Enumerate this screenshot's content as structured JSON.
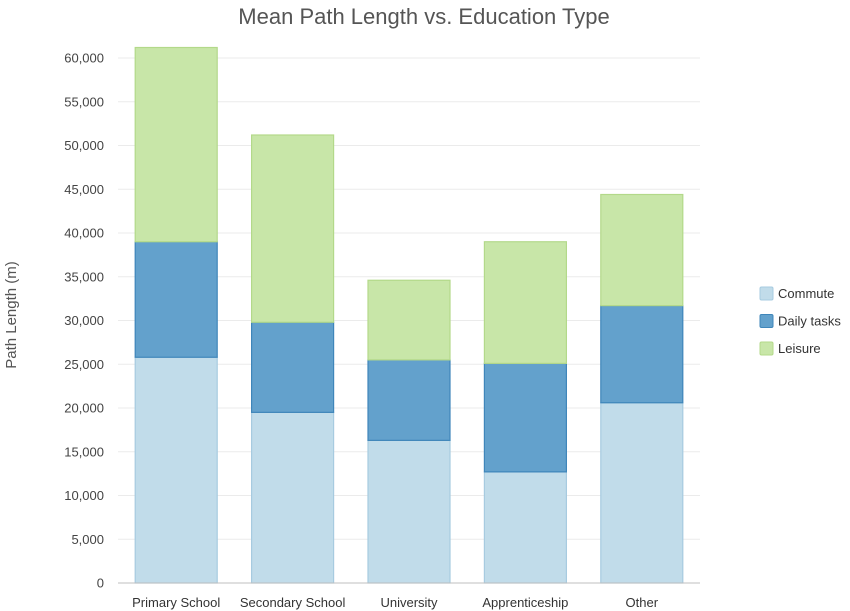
{
  "chart_data": {
    "type": "bar",
    "stacked": true,
    "title": "Mean Path Length vs. Education Type",
    "xlabel": "",
    "ylabel": "Path Length (m)",
    "ylim": [
      0,
      60000
    ],
    "yticks": [
      0,
      5000,
      10000,
      15000,
      20000,
      25000,
      30000,
      35000,
      40000,
      45000,
      50000,
      55000,
      60000
    ],
    "ytick_labels": [
      "0",
      "5,000",
      "10,000",
      "15,000",
      "20,000",
      "25,000",
      "30,000",
      "35,000",
      "40,000",
      "45,000",
      "50,000",
      "55,000",
      "60,000"
    ],
    "grid": true,
    "legend_position": "right",
    "categories": [
      "Primary School",
      "Secondary School",
      "University",
      "Apprenticeship",
      "Other"
    ],
    "series": [
      {
        "name": "Commute",
        "color": "#c1dcea",
        "stroke": "#a7cbe0",
        "values": [
          25800,
          19500,
          16300,
          12700,
          20600
        ]
      },
      {
        "name": "Daily tasks",
        "color": "#63a1cc",
        "stroke": "#3f86ba",
        "values": [
          13200,
          10300,
          9200,
          12400,
          11100
        ]
      },
      {
        "name": "Leisure",
        "color": "#c8e6a8",
        "stroke": "#b3d98a",
        "values": [
          22200,
          21400,
          9100,
          13900,
          12700
        ]
      }
    ]
  }
}
